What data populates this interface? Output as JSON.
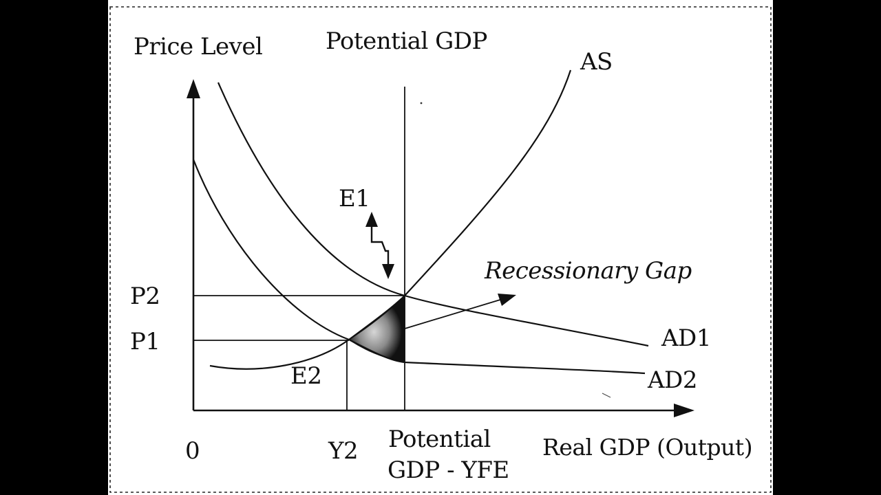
{
  "labels": {
    "price_level": "Price Level",
    "potential_gdp_top": "Potential GDP",
    "as": "AS",
    "e1": "E1",
    "recessionary_gap": "Recessionary Gap",
    "p2": "P2",
    "p1": "P1",
    "ad1": "AD1",
    "ad2": "AD2",
    "e2": "E2",
    "origin": "0",
    "y2": "Y2",
    "potential_gdp_bottom_line1": "Potential",
    "potential_gdp_bottom_line2": "GDP - YFE",
    "real_gdp": "Real GDP (Output)"
  },
  "colors": {
    "ink": "#111111",
    "paper": "#ffffff",
    "frame": "#000000",
    "gap_fill": "#111111",
    "gap_highlight": "#bdbdbd"
  }
}
